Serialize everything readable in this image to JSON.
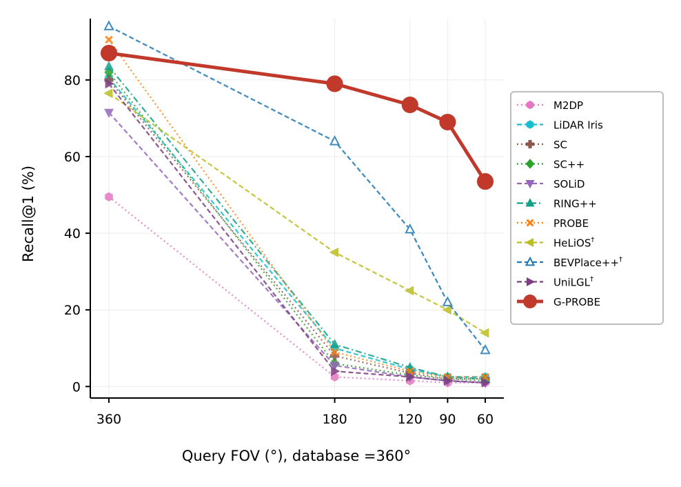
{
  "chart_data": {
    "type": "line",
    "xlabel": "Query FOV (°), database =360°",
    "ylabel": "Recall@1 (%)",
    "x": [
      360,
      180,
      120,
      90,
      60
    ],
    "x_tick_labels": [
      "360",
      "180",
      "120",
      "90",
      "60"
    ],
    "y_ticks": [
      0,
      20,
      40,
      60,
      80
    ],
    "ylim": [
      -3,
      96
    ],
    "grid": true,
    "legend_position": "right",
    "series": [
      {
        "name": "M2DP",
        "sup": "",
        "color": "#e377c2",
        "marker": "hexagon",
        "dash": "dotted",
        "values": [
          49.5,
          2.5,
          1.5,
          1.0,
          1.0
        ]
      },
      {
        "name": "LiDAR Iris",
        "sup": "",
        "color": "#17becf",
        "marker": "hexagon",
        "dash": "dashed",
        "values": [
          80.5,
          10.0,
          4.5,
          2.5,
          2.5
        ]
      },
      {
        "name": "SC",
        "sup": "",
        "color": "#8c564b",
        "marker": "plus",
        "dash": "dotted",
        "values": [
          80.0,
          8.0,
          3.5,
          2.0,
          2.0
        ]
      },
      {
        "name": "SC++",
        "sup": "",
        "color": "#2ca02c",
        "marker": "diamond",
        "dash": "dotted",
        "values": [
          82.0,
          6.0,
          3.0,
          2.0,
          1.5
        ]
      },
      {
        "name": "SOLiD",
        "sup": "",
        "color": "#9467bd",
        "marker": "triangle-down",
        "dash": "dashed",
        "values": [
          71.5,
          5.5,
          2.5,
          1.5,
          1.0
        ]
      },
      {
        "name": "RING++",
        "sup": "",
        "color": "#13a08a",
        "marker": "triangle-up",
        "dash": "dashdot",
        "values": [
          83.5,
          11.0,
          5.0,
          2.5,
          2.0
        ]
      },
      {
        "name": "PROBE",
        "sup": "",
        "color": "#ff7f0e",
        "marker": "x",
        "dash": "dotted",
        "values": [
          90.5,
          9.0,
          4.0,
          2.5,
          2.5
        ]
      },
      {
        "name": "HeLiOS",
        "sup": "†",
        "color": "#bcbd22",
        "marker": "triangle-left",
        "dash": "dashed",
        "values": [
          76.5,
          35.0,
          25.0,
          20.0,
          14.0
        ]
      },
      {
        "name": "BEVPlace++",
        "sup": "†",
        "color": "#1f77b4",
        "marker": "triangle-up-open",
        "dash": "dashed",
        "values": [
          94.0,
          64.0,
          41.0,
          22.0,
          9.5
        ]
      },
      {
        "name": "UniLGL",
        "sup": "†",
        "color": "#7b3f7f",
        "marker": "triangle-right",
        "dash": "dashed",
        "values": [
          79.0,
          4.0,
          2.5,
          1.5,
          1.0
        ]
      },
      {
        "name": "G-PROBE",
        "sup": "",
        "color": "#c0392b",
        "marker": "circle",
        "dash": "solid",
        "values": [
          87.0,
          79.0,
          73.5,
          69.0,
          53.5
        ]
      }
    ]
  }
}
